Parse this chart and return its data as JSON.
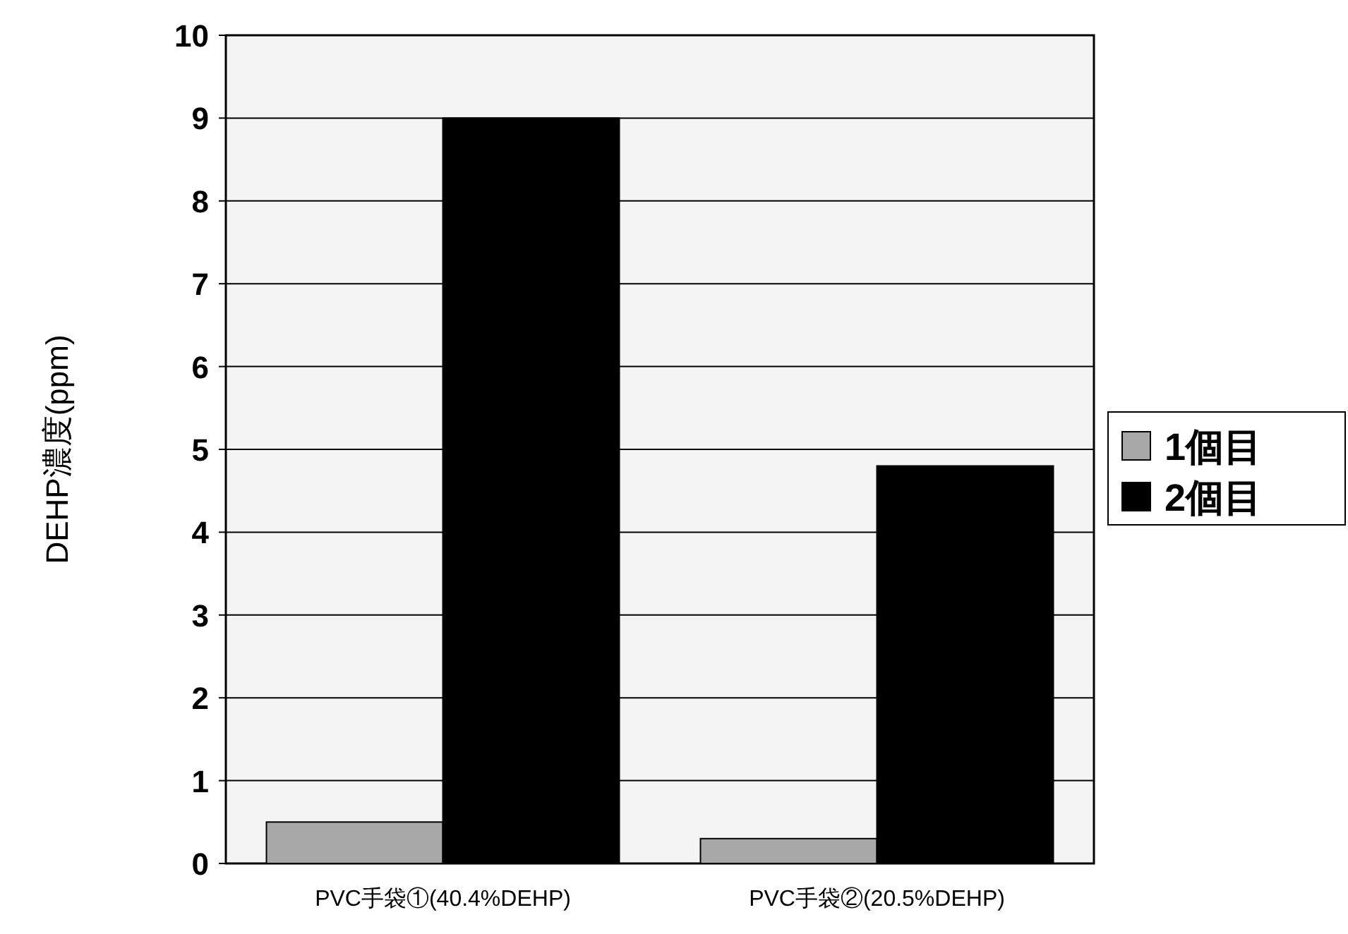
{
  "chart_data": {
    "type": "bar",
    "ylabel": "DEHP濃度(ppm)",
    "categories": [
      "PVC手袋①(40.4%DEHP)",
      "PVC手袋②(20.5%DEHP)"
    ],
    "series": [
      {
        "name": "1個目",
        "color": "#a8a8a8",
        "values": [
          0.5,
          0.3
        ]
      },
      {
        "name": "2個目",
        "color": "#000000",
        "values": [
          9.0,
          4.8
        ]
      }
    ],
    "ylim": [
      0,
      10
    ],
    "yticks": [
      0,
      1,
      2,
      3,
      4,
      5,
      6,
      7,
      8,
      9,
      10
    ],
    "grid": "y",
    "legend": "right"
  }
}
